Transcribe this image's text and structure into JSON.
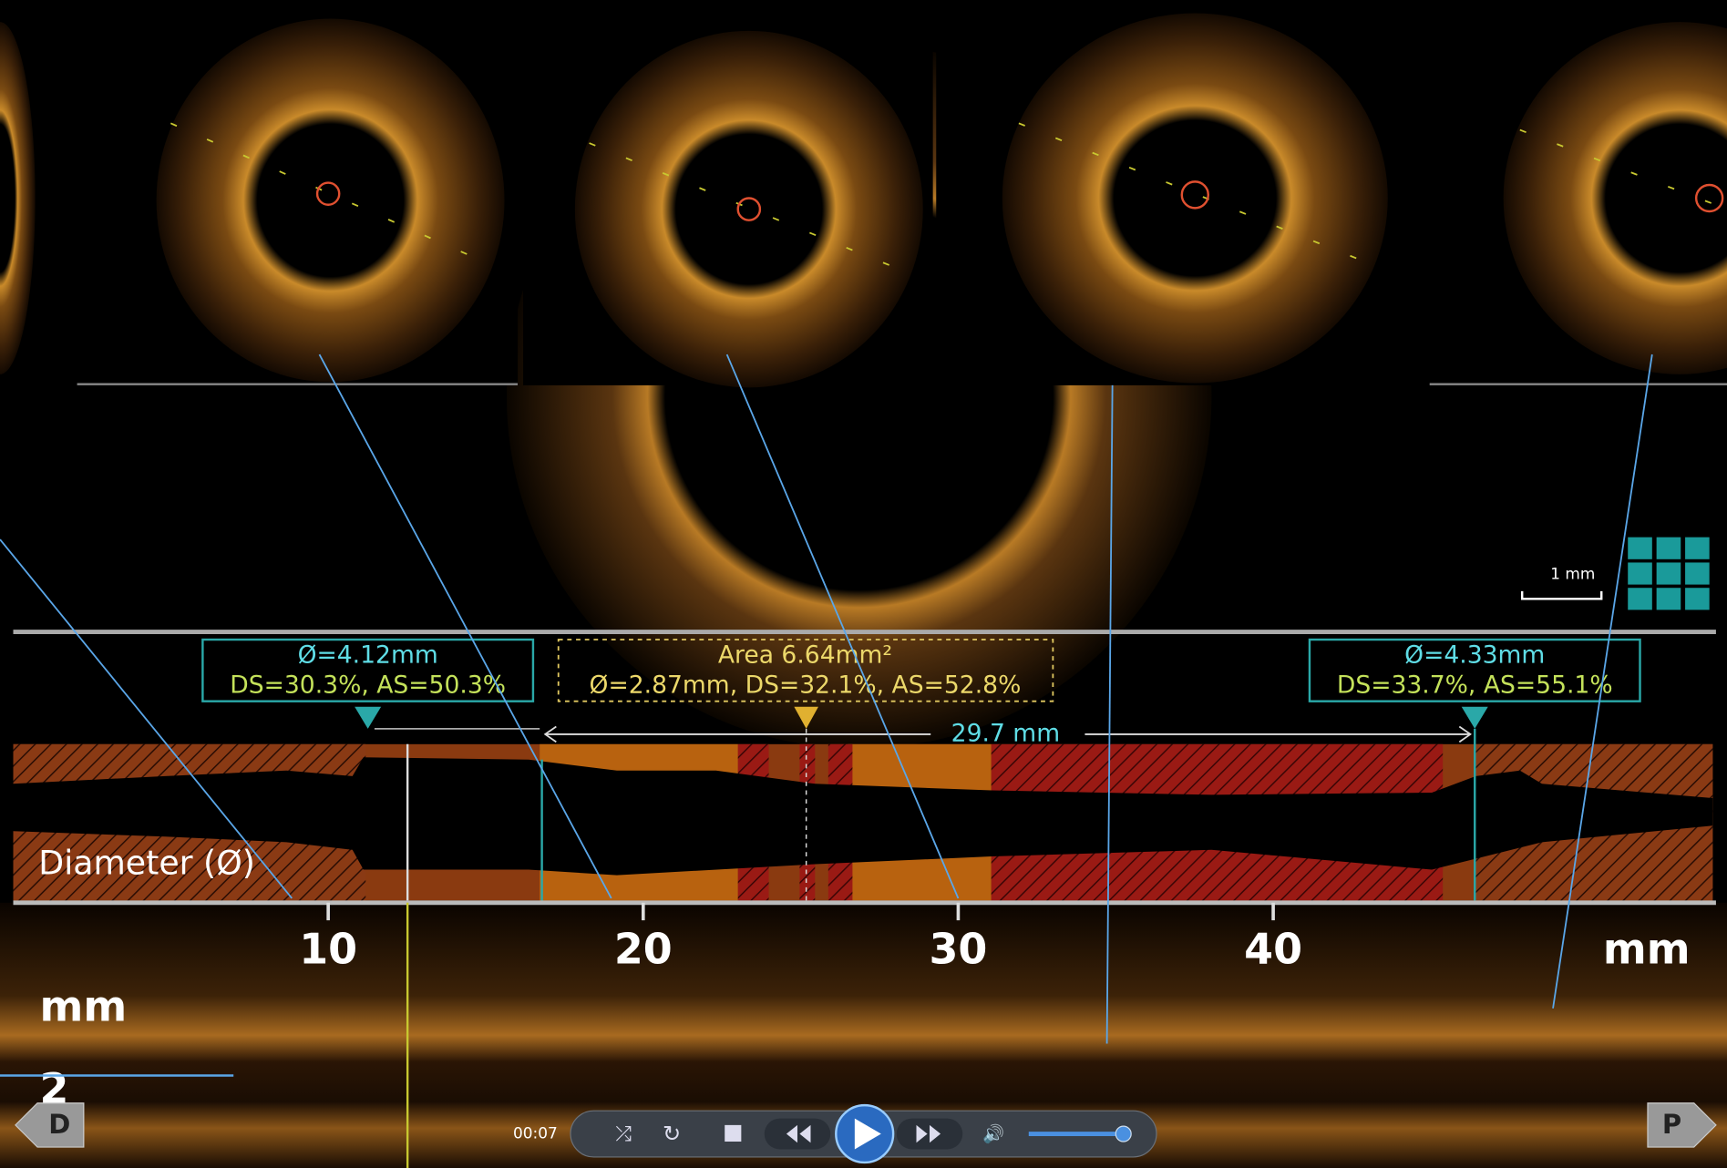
{
  "annotations": {
    "left": {
      "diameter": "Ø=4.12mm",
      "stenosis": "DS=30.3%, AS=50.3%"
    },
    "center": {
      "area": "Area 6.64mm²",
      "stats": "Ø=2.87mm, DS=32.1%, AS=52.8%"
    },
    "right": {
      "diameter": "Ø=4.33mm",
      "stenosis": "DS=33.7%, AS=55.1%"
    },
    "length": "29.7 mm"
  },
  "profile_label": "Diameter (Ø)",
  "axis": {
    "ticks": [
      10,
      20,
      30,
      40
    ],
    "unit": "mm"
  },
  "depth_axis": {
    "unit": "mm",
    "label": "2"
  },
  "scale_bar": "1 mm",
  "player": {
    "time": "00:07"
  },
  "nav": {
    "distal": "D",
    "proximal": "P"
  }
}
